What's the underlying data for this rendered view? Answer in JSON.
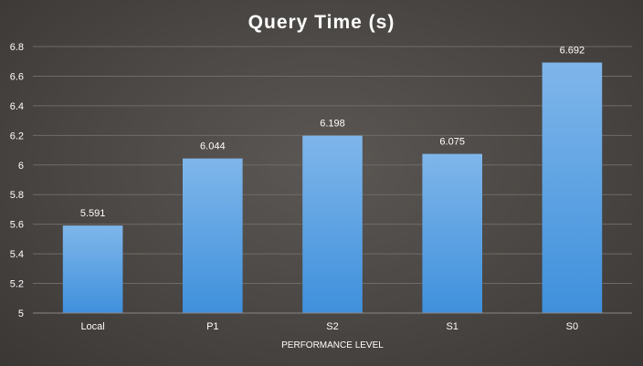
{
  "chart_data": {
    "type": "bar",
    "title": "Query Time (s)",
    "xlabel": "PERFORMANCE LEVEL",
    "ylabel": "",
    "categories": [
      "Local",
      "P1",
      "S2",
      "S1",
      "S0"
    ],
    "values": [
      5.591,
      6.044,
      6.198,
      6.075,
      6.692
    ],
    "data_labels": [
      "5.591",
      "6.044",
      "6.198",
      "6.075",
      "6.692"
    ],
    "ylim": [
      5,
      6.8
    ],
    "yticks": [
      "5",
      "5.2",
      "5.4",
      "5.6",
      "5.8",
      "6",
      "6.2",
      "6.4",
      "6.6",
      "6.8"
    ],
    "grid": true,
    "legend": "none",
    "colors": {
      "bar_top": "#7fb6ea",
      "bar_bottom": "#3f90dc"
    }
  }
}
